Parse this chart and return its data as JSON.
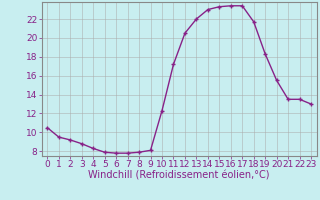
{
  "x": [
    0,
    1,
    2,
    3,
    4,
    5,
    6,
    7,
    8,
    9,
    10,
    11,
    12,
    13,
    14,
    15,
    16,
    17,
    18,
    19,
    20,
    21,
    22,
    23
  ],
  "y": [
    10.5,
    9.5,
    9.2,
    8.8,
    8.3,
    7.9,
    7.8,
    7.8,
    7.9,
    8.1,
    12.3,
    17.2,
    20.5,
    22.0,
    23.0,
    23.3,
    23.4,
    23.4,
    21.7,
    18.3,
    15.5,
    13.5,
    13.5,
    13.0
  ],
  "line_color": "#882288",
  "marker": "+",
  "marker_size": 3,
  "xlabel": "Windchill (Refroidissement éolien,°C)",
  "ylim": [
    7.5,
    23.8
  ],
  "yticks": [
    8,
    10,
    12,
    14,
    16,
    18,
    20,
    22
  ],
  "xticks": [
    0,
    1,
    2,
    3,
    4,
    5,
    6,
    7,
    8,
    9,
    10,
    11,
    12,
    13,
    14,
    15,
    16,
    17,
    18,
    19,
    20,
    21,
    22,
    23
  ],
  "background_color": "#c8eef0",
  "grid_color": "#aaaaaa",
  "tick_label_fontsize": 6.5,
  "xlabel_fontsize": 7,
  "line_width": 1.0,
  "markeredgewidth": 1.0
}
